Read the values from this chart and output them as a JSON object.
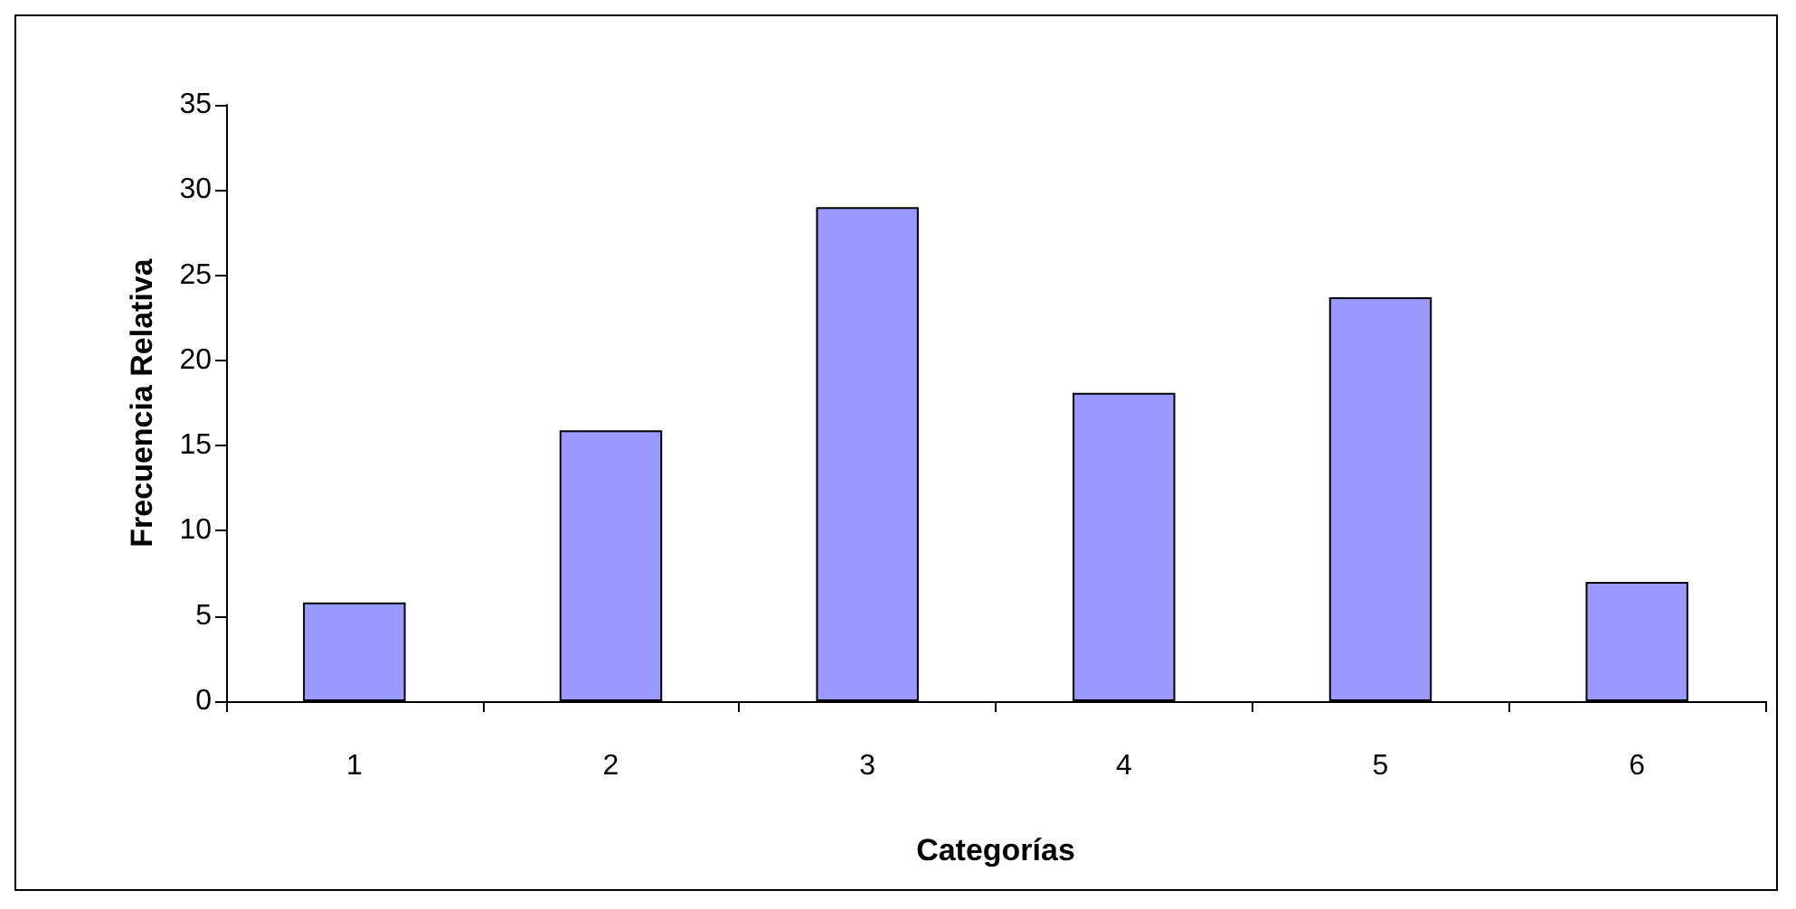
{
  "chart_data": {
    "type": "bar",
    "xlabel": "Categorías",
    "ylabel": "Frecuencia Relativa",
    "categories": [
      "1",
      "2",
      "3",
      "4",
      "5",
      "6"
    ],
    "values": [
      5.8,
      15.9,
      29.0,
      18.1,
      23.7,
      7.0
    ],
    "color": "#9999ff",
    "ylim": [
      0,
      35
    ],
    "yticks": [
      0,
      5,
      10,
      15,
      20,
      25,
      30,
      35
    ],
    "grid": false
  }
}
